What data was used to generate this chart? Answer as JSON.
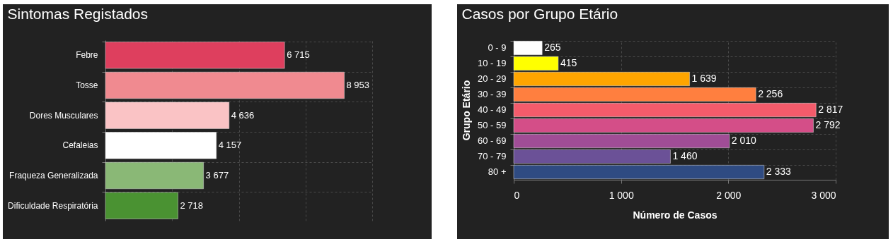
{
  "chart_data": [
    {
      "type": "bar",
      "orientation": "horizontal",
      "title": "Sintomas Registados",
      "categories": [
        "Febre",
        "Tosse",
        "Dores Musculares",
        "Cefaleias",
        "Fraqueza Generalizada",
        "Dificuldade Respiratória"
      ],
      "values": [
        6715,
        8953,
        4636,
        4157,
        3677,
        2718
      ],
      "colors": [
        "#de3f5e",
        "#f08a90",
        "#fac3c5",
        "#ffffff",
        "#8ab876",
        "#4a9232"
      ],
      "xlim": [
        0,
        10000
      ],
      "xticks": [
        {
          "value": 0,
          "label": null
        },
        {
          "value": 2500,
          "label": null
        },
        {
          "value": 5000,
          "label": null
        },
        {
          "value": 7500,
          "label": null
        },
        {
          "value": 10000,
          "label": null
        }
      ],
      "tick_labels": "y",
      "grid": true,
      "data_labels": true
    },
    {
      "type": "bar",
      "orientation": "horizontal",
      "title": "Casos por Grupo Etário",
      "xlabel": "Número de Casos",
      "ylabel": "Grupo Etário",
      "categories": [
        "0 - 9",
        "10 - 19",
        "20 - 29",
        "30 - 39",
        "40 - 49",
        "50 - 59",
        "60 - 69",
        "70 - 79",
        "80 +"
      ],
      "values": [
        265,
        415,
        1639,
        2256,
        2817,
        2792,
        2010,
        1460,
        2333
      ],
      "colors": [
        "#ffffff",
        "#ffff00",
        "#ffa500",
        "#ff7f3f",
        "#f45b6b",
        "#d44e88",
        "#a04d96",
        "#6b5197",
        "#2f4b82"
      ],
      "xlim": [
        0,
        3000
      ],
      "xticks": [
        0,
        {
          "value": 1000,
          "label": "1 000"
        },
        {
          "value": 2000,
          "label": "2 000"
        },
        {
          "value": 3000,
          "label": "3 000"
        }
      ],
      "grid": true,
      "data_labels": true
    }
  ]
}
